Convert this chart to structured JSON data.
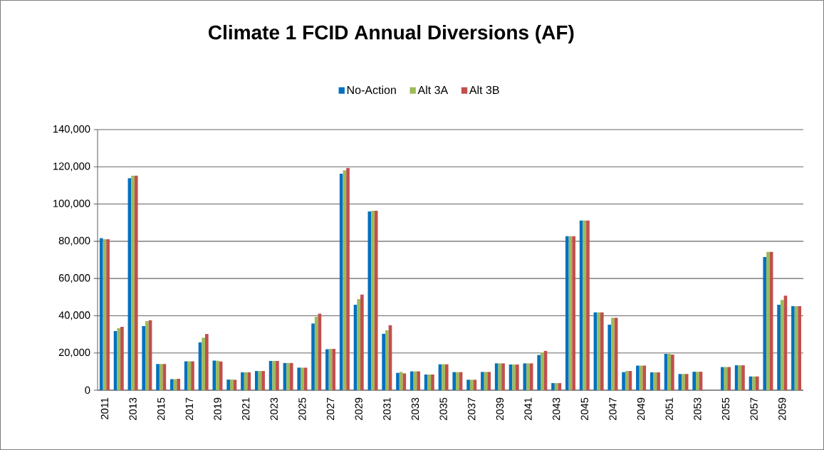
{
  "chart_data": {
    "type": "bar",
    "title": "Climate 1 FCID Annual Diversions (AF)",
    "categories": [
      "2011",
      null,
      "2013",
      null,
      "2015",
      null,
      "2017",
      null,
      "2019",
      null,
      "2021",
      null,
      "2023",
      null,
      "2025",
      null,
      "2027",
      null,
      "2029",
      null,
      "2031",
      null,
      "2033",
      null,
      "2035",
      null,
      "2037",
      null,
      "2039",
      null,
      "2041",
      null,
      "2043",
      null,
      "2045",
      null,
      "2047",
      null,
      "2049",
      null,
      "2051",
      null,
      "2053",
      null,
      "2055",
      null,
      "2057",
      null,
      "2059",
      null
    ],
    "series": [
      {
        "name": "No-Action",
        "color": "#0070c0",
        "values": [
          81700,
          31700,
          113900,
          34400,
          14100,
          5900,
          15500,
          25700,
          15900,
          5700,
          9600,
          10300,
          15700,
          14600,
          12100,
          35800,
          22000,
          116300,
          45900,
          96000,
          30300,
          9300,
          10100,
          8400,
          13900,
          9700,
          5600,
          9800,
          14400,
          13800,
          14400,
          18900,
          3800,
          82700,
          91100,
          41800,
          35200,
          9700,
          13200,
          9600,
          19500,
          8700,
          9900,
          0,
          12400,
          13400,
          7400,
          71500,
          45900,
          45100
        ]
      },
      {
        "name": "Alt 3A",
        "color": "#9bbb59",
        "values": [
          81100,
          33300,
          115200,
          37100,
          14100,
          5900,
          15500,
          28200,
          15800,
          5700,
          9600,
          10300,
          15700,
          14600,
          12100,
          39400,
          22200,
          118100,
          48900,
          96400,
          32200,
          9800,
          10100,
          8400,
          13900,
          9700,
          5600,
          9800,
          14400,
          13800,
          14400,
          20300,
          3800,
          82700,
          91100,
          41800,
          38900,
          10300,
          13200,
          9600,
          19500,
          8700,
          9900,
          0,
          12400,
          13400,
          7400,
          74300,
          48500,
          45100
        ]
      },
      {
        "name": "Alt 3B",
        "color": "#c0504d",
        "values": [
          81100,
          34000,
          115200,
          37600,
          14100,
          6100,
          15500,
          30200,
          15400,
          5600,
          9600,
          10300,
          15700,
          14600,
          12100,
          41100,
          22200,
          119400,
          51300,
          96400,
          34900,
          9000,
          10100,
          8400,
          13900,
          9700,
          5600,
          9800,
          14400,
          13800,
          14400,
          21100,
          3800,
          82700,
          91100,
          41800,
          38900,
          10300,
          13200,
          9600,
          19100,
          8700,
          9900,
          0,
          12400,
          13400,
          7400,
          74300,
          50800,
          45100
        ]
      }
    ],
    "ylim": [
      0,
      140000
    ],
    "yticks": [
      0,
      {
        "value": 20000,
        "label": "20,000"
      },
      {
        "value": 40000,
        "label": "40,000"
      },
      {
        "value": 60000,
        "label": "60,000"
      },
      {
        "value": 80000,
        "label": "80,000"
      },
      {
        "value": 100000,
        "label": "100,000"
      },
      {
        "value": 120000,
        "label": "120,000"
      },
      {
        "value": 140000,
        "label": "140,000"
      }
    ],
    "grid": "y",
    "legend": "top"
  }
}
